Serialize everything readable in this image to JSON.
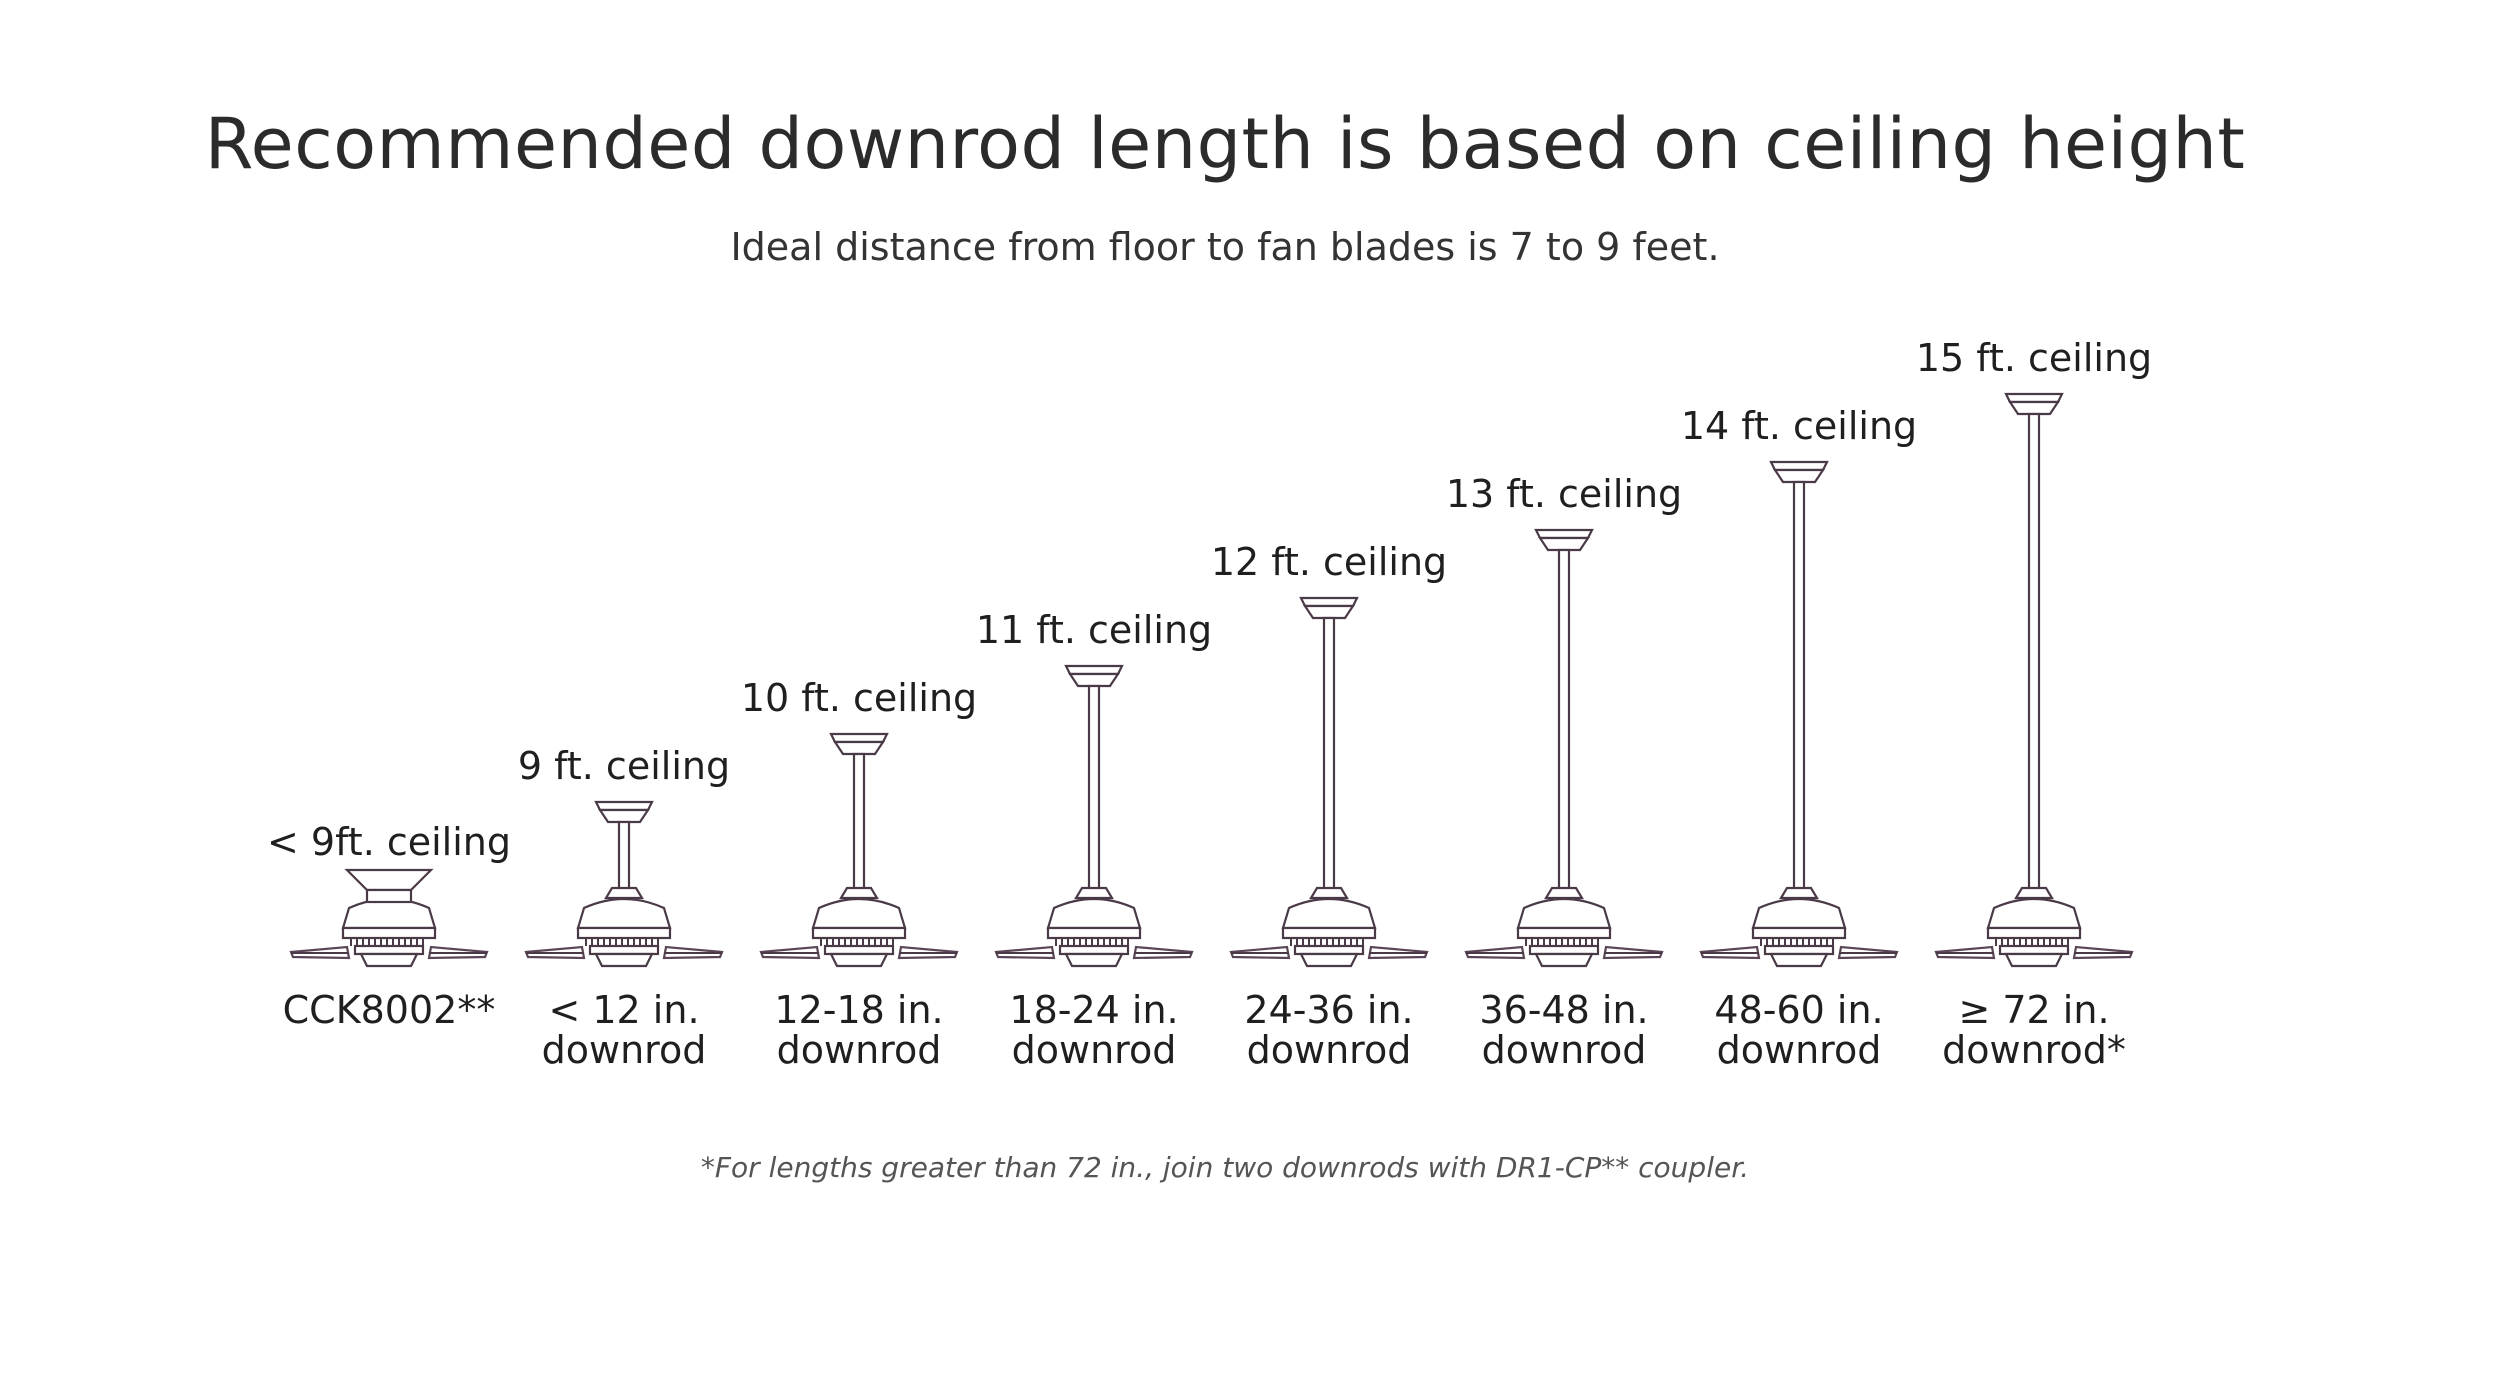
{
  "header": {
    "title": "Recommended downrod length is based on ceiling height",
    "subtitle": "Ideal distance from floor to fan blades is 7 to 9 feet."
  },
  "fans": [
    {
      "ceiling": "< 9ft. ceiling",
      "downrod_line1": "CCK8002**",
      "downrod_line2": "",
      "rod_feet": 0
    },
    {
      "ceiling": "9 ft. ceiling",
      "downrod_line1": "< 12 in.",
      "downrod_line2": "downrod",
      "rod_feet": 1
    },
    {
      "ceiling": "10 ft. ceiling",
      "downrod_line1": "12-18 in.",
      "downrod_line2": "downrod",
      "rod_feet": 2
    },
    {
      "ceiling": "11 ft. ceiling",
      "downrod_line1": "18-24 in.",
      "downrod_line2": "downrod",
      "rod_feet": 3
    },
    {
      "ceiling": "12 ft. ceiling",
      "downrod_line1": "24-36 in.",
      "downrod_line2": "downrod",
      "rod_feet": 4
    },
    {
      "ceiling": "13 ft. ceiling",
      "downrod_line1": "36-48 in.",
      "downrod_line2": "downrod",
      "rod_feet": 5
    },
    {
      "ceiling": "14 ft. ceiling",
      "downrod_line1": "48-60 in.",
      "downrod_line2": "downrod",
      "rod_feet": 6
    },
    {
      "ceiling": "15 ft. ceiling",
      "downrod_line1": "≥ 72 in.",
      "downrod_line2": "downrod*",
      "rod_feet": 7
    }
  ],
  "footnote": "*For lengths greater than 72 in., join two downrods with DR1-CP** coupler.",
  "colors": {
    "fan_stroke": "#4a3a48",
    "text": "#1f1f1f"
  },
  "icons": {
    "fan": "ceiling-fan-icon"
  }
}
